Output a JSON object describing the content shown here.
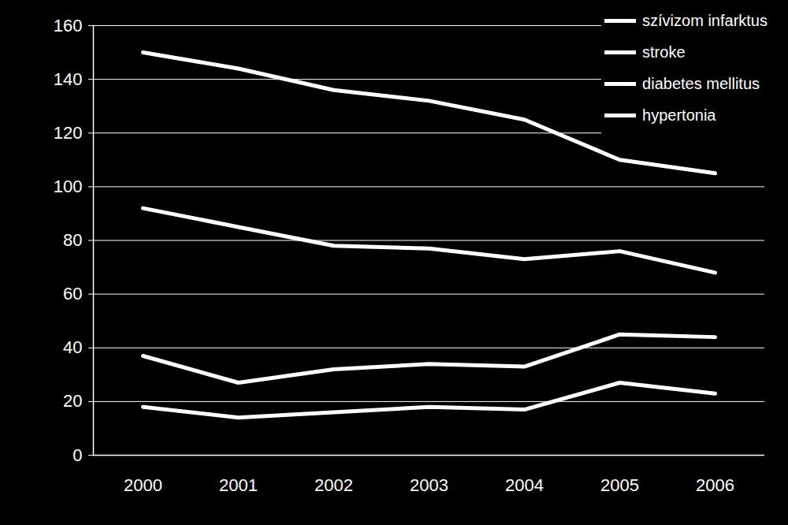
{
  "chart_data": {
    "type": "line",
    "categories": [
      "2000",
      "2001",
      "2002",
      "2003",
      "2004",
      "2005",
      "2006"
    ],
    "series": [
      {
        "name": "szívizom infarktus",
        "color": "#ffffff",
        "values": [
          150,
          144,
          136,
          132,
          125,
          110,
          105
        ]
      },
      {
        "name": "stroke",
        "color": "#ffffff",
        "values": [
          92,
          85,
          78,
          77,
          73,
          76,
          68
        ]
      },
      {
        "name": "diabetes mellitus",
        "color": "#ffffff",
        "values": [
          37,
          27,
          32,
          34,
          33,
          45,
          44
        ]
      },
      {
        "name": "hypertonia",
        "color": "#ffffff",
        "values": [
          18,
          14,
          16,
          18,
          17,
          27,
          23
        ]
      }
    ],
    "ylim": [
      0,
      160
    ],
    "yticks": [
      0,
      20,
      40,
      60,
      80,
      100,
      120,
      140,
      160
    ],
    "grid": true,
    "legend": "top right"
  }
}
